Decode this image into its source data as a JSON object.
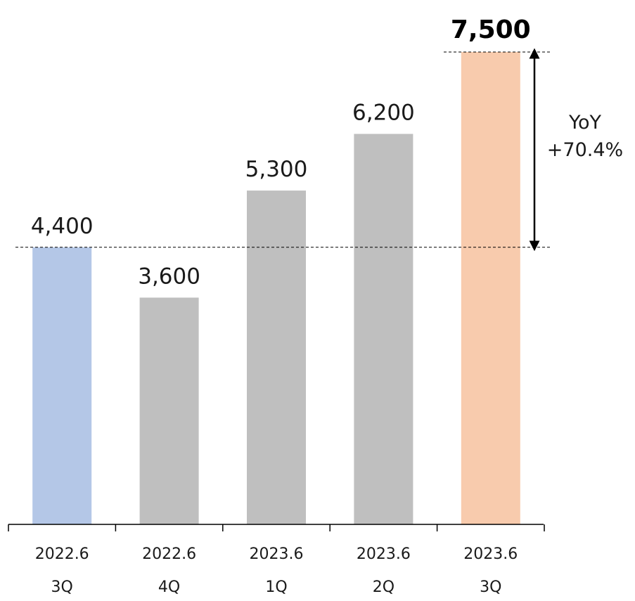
{
  "chart_data": {
    "type": "bar",
    "title": "",
    "xlabel": "",
    "ylabel": "",
    "ylim": [
      0,
      7500
    ],
    "grid": false,
    "legend": "none",
    "categories": [
      {
        "line1": "2022.6",
        "line2": "3Q"
      },
      {
        "line1": "2022.6",
        "line2": "4Q"
      },
      {
        "line1": "2023.6",
        "line2": "1Q"
      },
      {
        "line1": "2023.6",
        "line2": "2Q"
      },
      {
        "line1": "2023.6",
        "line2": "3Q"
      }
    ],
    "values": [
      4400,
      3600,
      5300,
      6200,
      7500
    ],
    "value_labels": [
      "4,400",
      "3,600",
      "5,300",
      "6,200",
      "7,500"
    ],
    "bar_colors": [
      "#b4c7e7",
      "#bfbfbf",
      "#bfbfbf",
      "#bfbfbf",
      "#f8cbad"
    ],
    "highlight_index": 4,
    "annotation": {
      "from_index": 0,
      "to_index": 4,
      "line1": "YoY",
      "line2": "+70.4%"
    }
  }
}
